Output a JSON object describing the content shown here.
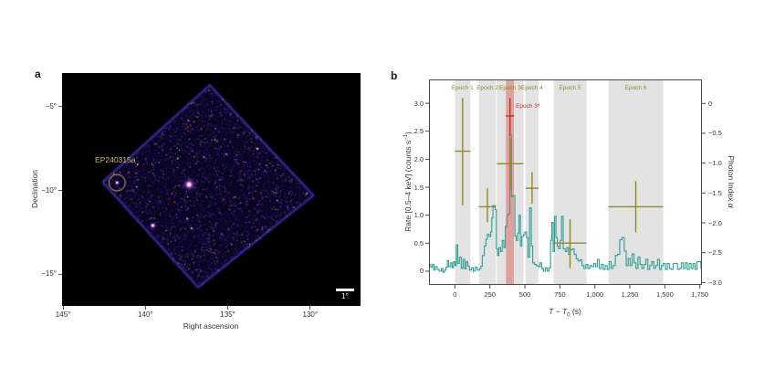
{
  "figure": {
    "panel_a": {
      "label": "a",
      "xlabel": "Right ascension",
      "ylabel": "Declination",
      "annotation": "EP240315a",
      "scalebar": "1°"
    },
    "panel_b": {
      "label": "b",
      "ylabel_left_main": "Rate [0.5–4 keV] (counts s",
      "ylabel_left_sup": "−1",
      "ylabel_left_close": ")",
      "ylabel_right_main": "Photon Index ",
      "ylabel_right_alpha": "α",
      "xlabel_T1": "T",
      "xlabel_minus": " − ",
      "xlabel_T2": "T",
      "xlabel_sub": "0",
      "xlabel_unit": " (s)"
    }
  },
  "chart_data": [
    {
      "type": "heatmap",
      "subtype": "xray-sky-image",
      "panel": "a",
      "xlabel": "Right ascension",
      "ylabel": "Declination",
      "x_ticks": [
        {
          "v": 145,
          "label": "145°"
        },
        {
          "v": 140,
          "label": "140°"
        },
        {
          "v": 135,
          "label": "135°"
        },
        {
          "v": 130,
          "label": "130°"
        }
      ],
      "y_ticks": [
        {
          "v": -5,
          "label": "−5°"
        },
        {
          "v": -10,
          "label": "−10°"
        },
        {
          "v": -15,
          "label": "−15°"
        }
      ],
      "x_range": [
        145.06,
        126.94
      ],
      "y_range": [
        -2.98,
        -16.91
      ],
      "field_corners_radec": [
        [
          136.1,
          -3.7
        ],
        [
          129.8,
          -10.3
        ],
        [
          136.8,
          -15.8
        ],
        [
          142.6,
          -9.5
        ]
      ],
      "sources": [
        {
          "name": "EP240315a",
          "ra": 141.72,
          "dec": -9.54,
          "size": "small",
          "color": "#cfc0ff",
          "circled": true
        },
        {
          "name": "",
          "ra": 137.35,
          "dec": -9.65,
          "size": "bright",
          "color": "#ff9bd8",
          "circled": false
        },
        {
          "name": "",
          "ra": 139.55,
          "dec": -12.1,
          "size": "medium",
          "color": "#ffb0e0",
          "circled": false
        },
        {
          "name": "",
          "ra": 133.2,
          "dec": -7.5,
          "size": "faint",
          "color": "#d86a3a",
          "circled": false
        }
      ],
      "annotation": {
        "label": "EP240315a",
        "color": "#d2b964"
      },
      "scalebar": {
        "label": "1°",
        "deg": 1
      }
    },
    {
      "type": "line",
      "subtype": "step-lightcurve-with-photon-index",
      "panel": "b",
      "x_axis": {
        "range": [
          -185,
          1765
        ],
        "ticks": [
          {
            "v": 0,
            "label": "0"
          },
          {
            "v": 250,
            "label": "250"
          },
          {
            "v": 500,
            "label": "500"
          },
          {
            "v": 750,
            "label": "750"
          },
          {
            "v": 1000,
            "label": "1,000"
          },
          {
            "v": 1250,
            "label": "1,250"
          },
          {
            "v": 1500,
            "label": "1,500"
          },
          {
            "v": 1750,
            "label": "1,750"
          }
        ]
      },
      "y_left": {
        "range": [
          -0.245,
          3.425
        ],
        "ticks": [
          {
            "v": 0,
            "label": "0"
          },
          {
            "v": 0.5,
            "label": "0.5"
          },
          {
            "v": 1.0,
            "label": "1.0"
          },
          {
            "v": 1.5,
            "label": "1.5"
          },
          {
            "v": 2.0,
            "label": "2.0"
          },
          {
            "v": 2.5,
            "label": "2.5"
          },
          {
            "v": 3.0,
            "label": "3.0"
          }
        ]
      },
      "y_right": {
        "range": [
          0.402,
          -3.04
        ],
        "ticks": [
          {
            "v": 0,
            "label": "0"
          },
          {
            "v": -0.5,
            "label": "−0.5"
          },
          {
            "v": -1.0,
            "label": "−1.0"
          },
          {
            "v": -1.5,
            "label": "−1.5"
          },
          {
            "v": -2.0,
            "label": "−2.0"
          },
          {
            "v": -2.5,
            "label": "−2.5"
          },
          {
            "v": -3.0,
            "label": "−3.0"
          }
        ]
      },
      "epochs": [
        {
          "name": "Epoch 1",
          "t": [
            0,
            110
          ],
          "alpha": -0.8,
          "alpha_range": [
            -1.71,
            0.09
          ]
        },
        {
          "name": "Epoch 2",
          "t": [
            172,
            293
          ],
          "alpha": -1.73,
          "alpha_range": [
            -1.99,
            -1.42
          ]
        },
        {
          "name": "Epoch 3",
          "t": [
            300,
            490
          ],
          "alpha": -1.01,
          "alpha_range": [
            -1.45,
            -0.58
          ]
        },
        {
          "name": "Epoch 4",
          "t": [
            505,
            597
          ],
          "alpha": -1.42,
          "alpha_range": [
            -1.68,
            -1.15
          ]
        },
        {
          "name": "Epoch 5",
          "t": [
            705,
            940
          ],
          "alpha": -2.34,
          "alpha_range": [
            -2.76,
            -1.94
          ]
        },
        {
          "name": "Epoch 6",
          "t": [
            1097,
            1488
          ],
          "alpha": -1.73,
          "alpha_range": [
            -2.16,
            -1.3
          ]
        }
      ],
      "special_epoch": {
        "name": "Epoch 3*",
        "t": [
          365,
          422
        ],
        "alpha": -0.21,
        "alpha_range": [
          -0.54,
          0.09
        ]
      },
      "series": {
        "name": "0.5–4 keV light curve",
        "step": true,
        "points": [
          [
            -185,
            0.12
          ],
          [
            -172,
            0.07
          ],
          [
            -160,
            0.12
          ],
          [
            -150,
            0.02
          ],
          [
            -140,
            0.08
          ],
          [
            -126,
            0.03
          ],
          [
            -112,
            0.0
          ],
          [
            -96,
            0.05
          ],
          [
            -86,
            -0.02
          ],
          [
            -74,
            0.02
          ],
          [
            -64,
            0.07
          ],
          [
            -54,
            0.19
          ],
          [
            -44,
            0.08
          ],
          [
            -30,
            0.15
          ],
          [
            -20,
            0.06
          ],
          [
            -10,
            0.17
          ],
          [
            0,
            0.1
          ],
          [
            10,
            0.47
          ],
          [
            20,
            0.14
          ],
          [
            32,
            0.25
          ],
          [
            46,
            0.05
          ],
          [
            58,
            0.21
          ],
          [
            70,
            0.04
          ],
          [
            80,
            0.17
          ],
          [
            92,
            0.09
          ],
          [
            104,
            0.02
          ],
          [
            118,
            0.06
          ],
          [
            132,
            0.0
          ],
          [
            146,
            0.07
          ],
          [
            160,
            0.02
          ],
          [
            176,
            0.05
          ],
          [
            186,
            0.09
          ],
          [
            196,
            0.28
          ],
          [
            210,
            0.45
          ],
          [
            222,
            0.57
          ],
          [
            232,
            0.66
          ],
          [
            244,
            0.62
          ],
          [
            256,
            0.7
          ],
          [
            264,
            0.95
          ],
          [
            272,
            1.17
          ],
          [
            288,
            1.1
          ],
          [
            296,
            0.4
          ],
          [
            304,
            0.28
          ],
          [
            314,
            0.42
          ],
          [
            326,
            0.35
          ],
          [
            338,
            0.55
          ],
          [
            350,
            0.42
          ],
          [
            360,
            0.8
          ],
          [
            372,
            1.0
          ],
          [
            382,
            1.02
          ],
          [
            392,
            2.43
          ],
          [
            404,
            1.33
          ],
          [
            414,
            1.35
          ],
          [
            428,
            0.63
          ],
          [
            438,
            0.55
          ],
          [
            448,
            0.68
          ],
          [
            458,
            1.0
          ],
          [
            468,
            0.45
          ],
          [
            478,
            0.62
          ],
          [
            490,
            0.65
          ],
          [
            500,
            0.7
          ],
          [
            512,
            0.6
          ],
          [
            522,
            0.25
          ],
          [
            534,
            1.13
          ],
          [
            546,
            0.45
          ],
          [
            556,
            0.15
          ],
          [
            568,
            0.12
          ],
          [
            582,
            0.1
          ],
          [
            596,
            0.08
          ],
          [
            608,
            0.15
          ],
          [
            620,
            0.05
          ],
          [
            632,
            0.0
          ],
          [
            646,
            0.06
          ],
          [
            660,
            0.0
          ],
          [
            672,
            0.06
          ],
          [
            684,
            0.55
          ],
          [
            692,
            0.87
          ],
          [
            702,
            0.35
          ],
          [
            712,
            0.98
          ],
          [
            722,
            0.6
          ],
          [
            732,
            0.45
          ],
          [
            742,
            0.4
          ],
          [
            752,
            0.55
          ],
          [
            762,
            0.98
          ],
          [
            774,
            0.4
          ],
          [
            788,
            0.35
          ],
          [
            800,
            0.42
          ],
          [
            812,
            0.3
          ],
          [
            824,
            0.38
          ],
          [
            838,
            0.4
          ],
          [
            852,
            0.3
          ],
          [
            866,
            0.22
          ],
          [
            880,
            0.18
          ],
          [
            894,
            0.2
          ],
          [
            908,
            0.1
          ],
          [
            922,
            0.05
          ],
          [
            936,
            0.12
          ],
          [
            950,
            0.05
          ],
          [
            964,
            0.1
          ],
          [
            978,
            0.08
          ],
          [
            992,
            0.14
          ],
          [
            1006,
            0.08
          ],
          [
            1018,
            0.21
          ],
          [
            1032,
            0.05
          ],
          [
            1046,
            0.12
          ],
          [
            1060,
            0.03
          ],
          [
            1074,
            0.1
          ],
          [
            1088,
            0.03
          ],
          [
            1102,
            0.17
          ],
          [
            1116,
            0.05
          ],
          [
            1130,
            0.1
          ],
          [
            1146,
            0.28
          ],
          [
            1162,
            0.3
          ],
          [
            1178,
            0.56
          ],
          [
            1194,
            0.6
          ],
          [
            1210,
            0.36
          ],
          [
            1224,
            0.1
          ],
          [
            1238,
            0.23
          ],
          [
            1252,
            0.1
          ],
          [
            1266,
            0.31
          ],
          [
            1280,
            0.15
          ],
          [
            1294,
            0.05
          ],
          [
            1308,
            0.25
          ],
          [
            1322,
            0.12
          ],
          [
            1336,
            0.05
          ],
          [
            1350,
            0.12
          ],
          [
            1364,
            0.21
          ],
          [
            1378,
            0.03
          ],
          [
            1392,
            0.1
          ],
          [
            1406,
            0.17
          ],
          [
            1420,
            0.05
          ],
          [
            1434,
            0.1
          ],
          [
            1448,
            0.21
          ],
          [
            1462,
            0.03
          ],
          [
            1476,
            0.1
          ],
          [
            1490,
            0.14
          ],
          [
            1504,
            0.03
          ],
          [
            1518,
            0.14
          ],
          [
            1532,
            0.05
          ],
          [
            1546,
            0.03
          ],
          [
            1560,
            0.14
          ],
          [
            1576,
            0.14
          ],
          [
            1590,
            0.03
          ],
          [
            1604,
            0.05
          ],
          [
            1618,
            0.15
          ],
          [
            1632,
            0.05
          ],
          [
            1646,
            0.15
          ],
          [
            1660,
            0.03
          ],
          [
            1674,
            0.14
          ],
          [
            1688,
            0.05
          ],
          [
            1702,
            0.14
          ],
          [
            1716,
            0.03
          ],
          [
            1730,
            0.17
          ],
          [
            1744,
            0.17
          ],
          [
            1758,
            0.05
          ]
        ]
      },
      "colors": {
        "lightcurve": "#2e9d95",
        "epoch_band": "#e3e3e3",
        "epoch_cross": "#8f8b21",
        "epoch_label": "#8f8b21",
        "special_band": "#d96057",
        "special_cross": "#b5342c",
        "special_label": "#c0392b"
      }
    }
  ]
}
